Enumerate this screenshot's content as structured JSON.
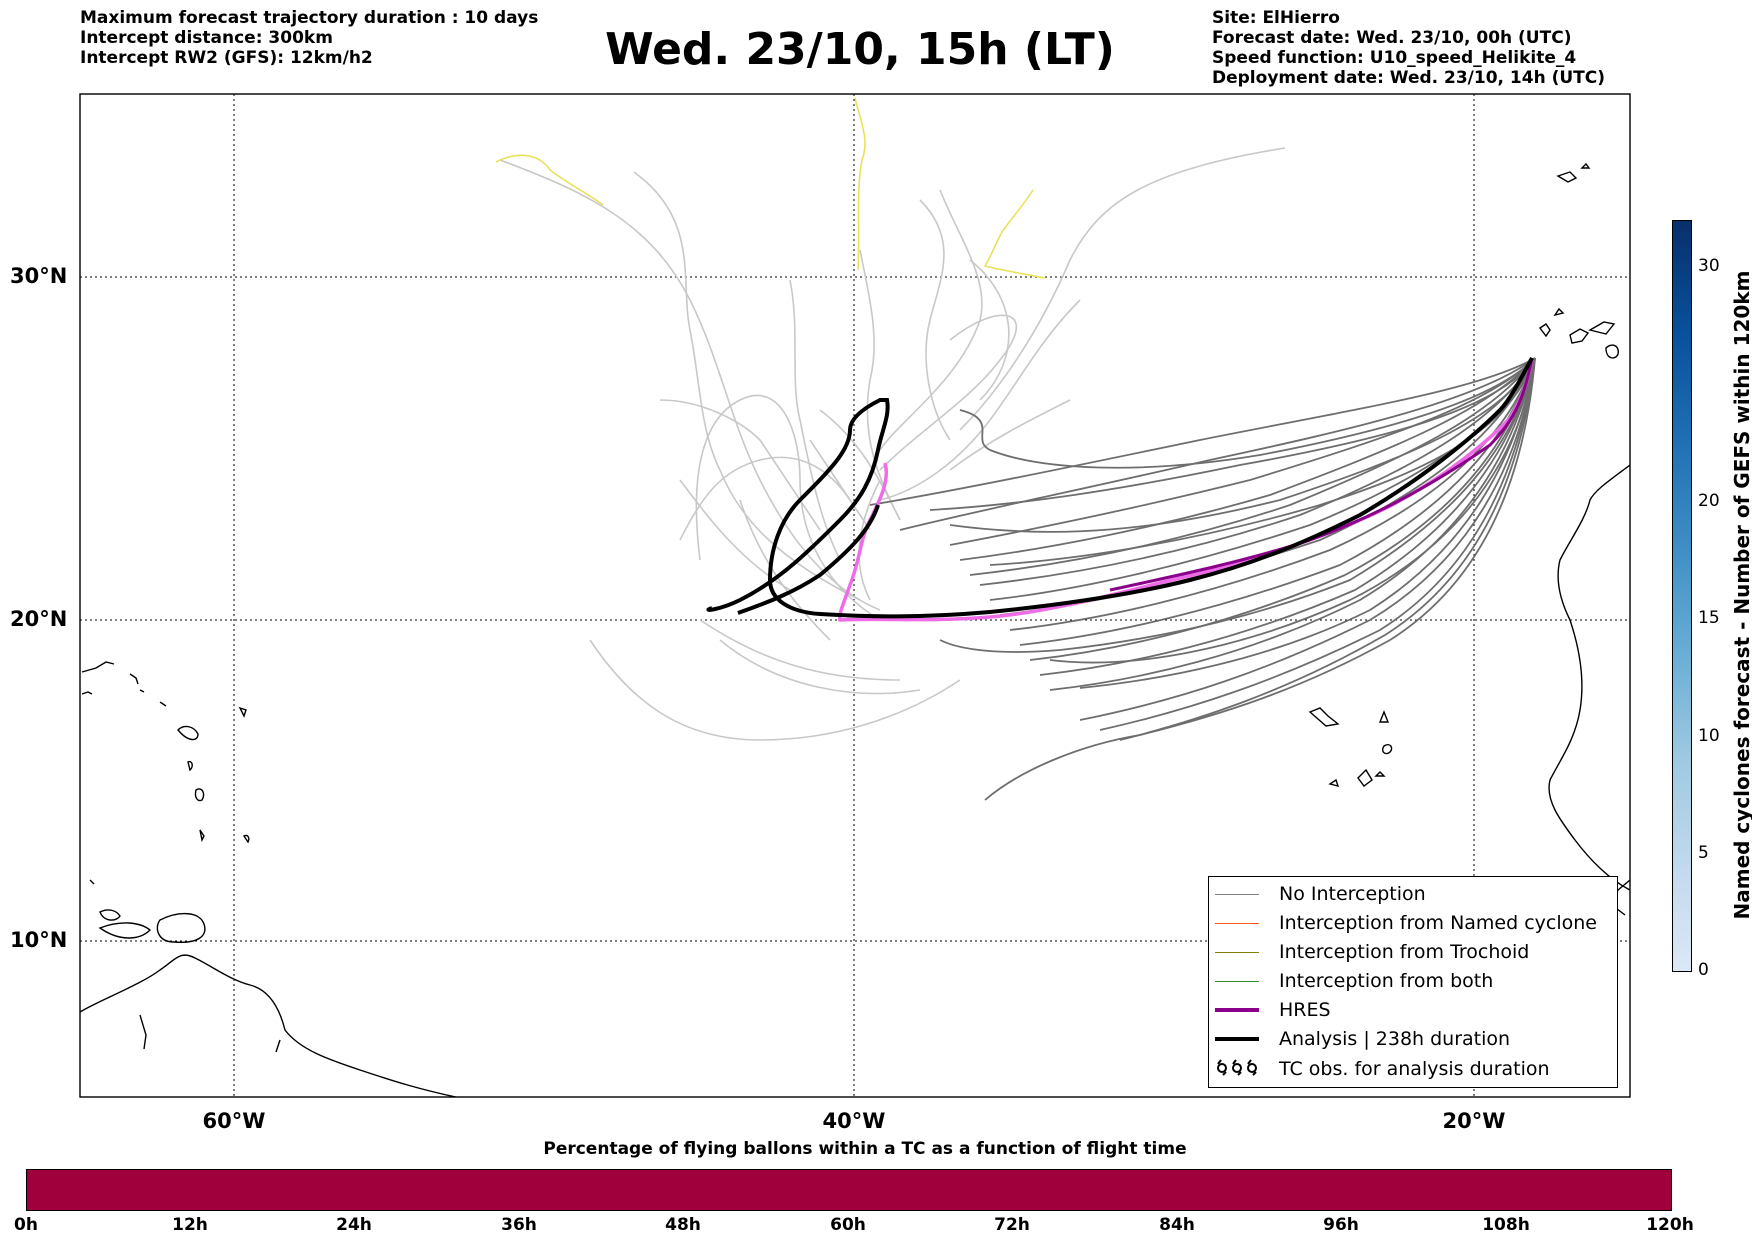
{
  "header": {
    "left_lines": [
      "Maximum forecast trajectory duration : 10 days",
      "Intercept distance: 300km",
      "Intercept RW2 (GFS):  12km/h2"
    ],
    "title": "Wed. 23/10, 15h (LT)",
    "right_lines": [
      "Site: ElHierro",
      "Forecast date: Wed. 23/10, 00h (UTC)",
      "Speed function: U10_speed_Helikite_4",
      "Deployment date: Wed. 23/10, 14h (UTC)"
    ]
  },
  "map": {
    "lat_labels": [
      "30°N",
      "20°N",
      "10°N"
    ],
    "lon_labels": [
      "60°W",
      "40°W",
      "20°W"
    ],
    "lon_range": [
      -65,
      -15
    ],
    "lat_range": [
      5,
      34.5
    ],
    "meridians": [
      -60,
      -40,
      -20
    ],
    "parallels": [
      30,
      20,
      10
    ],
    "colors": {
      "no_interception": "#6e6e6e",
      "light_track": "#c8c8c8",
      "yellow_track": "#e8e25a",
      "hres": "#ee6ce8",
      "analysis": "#000000"
    }
  },
  "legend": {
    "items": [
      {
        "label": "No Interception",
        "color": "#808080",
        "style": "thin"
      },
      {
        "label": "Interception from Named cyclone",
        "color": "#ff5a1f",
        "style": "thin"
      },
      {
        "label": "Interception from Trochoid",
        "color": "#808000",
        "style": "thin"
      },
      {
        "label": "Interception from both",
        "color": "#2e8b2e",
        "style": "thin"
      },
      {
        "label": "HRES",
        "color": "#8b008b",
        "style": "thick"
      },
      {
        "label": "Analysis | 238h duration",
        "color": "#000000",
        "style": "thick"
      },
      {
        "label": "TC obs. for analysis duration",
        "color": "#000000",
        "style": "symbol",
        "symbol": "ᦶᦶᦶ"
      }
    ]
  },
  "colorbar": {
    "label": "Named cyclones forecast - Number of GEFS within 120km",
    "ticks": [
      "0",
      "5",
      "10",
      "15",
      "20",
      "30"
    ]
  },
  "flight_bar": {
    "title": "Percentage of flying ballons within a TC as a function of flight time",
    "ticks": [
      "0h",
      "12h",
      "24h",
      "36h",
      "48h",
      "60h",
      "72h",
      "84h",
      "96h",
      "108h",
      "120h"
    ],
    "color": "#a0003c"
  }
}
